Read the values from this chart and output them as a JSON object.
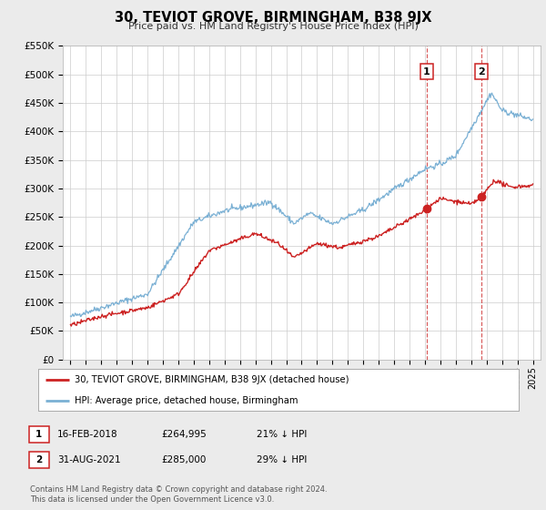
{
  "title": "30, TEVIOT GROVE, BIRMINGHAM, B38 9JX",
  "subtitle": "Price paid vs. HM Land Registry's House Price Index (HPI)",
  "bg_color": "#ebebeb",
  "plot_bg_color": "#ffffff",
  "grid_color": "#cccccc",
  "red_color": "#cc2222",
  "blue_color": "#7ab0d4",
  "ylim": [
    0,
    550000
  ],
  "yticks": [
    0,
    50000,
    100000,
    150000,
    200000,
    250000,
    300000,
    350000,
    400000,
    450000,
    500000,
    550000
  ],
  "ytick_labels": [
    "£0",
    "£50K",
    "£100K",
    "£150K",
    "£200K",
    "£250K",
    "£300K",
    "£350K",
    "£400K",
    "£450K",
    "£500K",
    "£550K"
  ],
  "xlim_start": 1994.5,
  "xlim_end": 2025.5,
  "xticks": [
    1995,
    1996,
    1997,
    1998,
    1999,
    2000,
    2001,
    2002,
    2003,
    2004,
    2005,
    2006,
    2007,
    2008,
    2009,
    2010,
    2011,
    2012,
    2013,
    2014,
    2015,
    2016,
    2017,
    2018,
    2019,
    2020,
    2021,
    2022,
    2023,
    2024,
    2025
  ],
  "sale1_x": 2018.12,
  "sale1_y": 264995,
  "sale2_x": 2021.66,
  "sale2_y": 285000,
  "annotation1": "1",
  "annotation2": "2",
  "legend_label_red": "30, TEVIOT GROVE, BIRMINGHAM, B38 9JX (detached house)",
  "legend_label_blue": "HPI: Average price, detached house, Birmingham",
  "table_row1": [
    "1",
    "16-FEB-2018",
    "£264,995",
    "21% ↓ HPI"
  ],
  "table_row2": [
    "2",
    "31-AUG-2021",
    "£285,000",
    "29% ↓ HPI"
  ],
  "footnote": "Contains HM Land Registry data © Crown copyright and database right 2024.\nThis data is licensed under the Open Government Licence v3.0."
}
